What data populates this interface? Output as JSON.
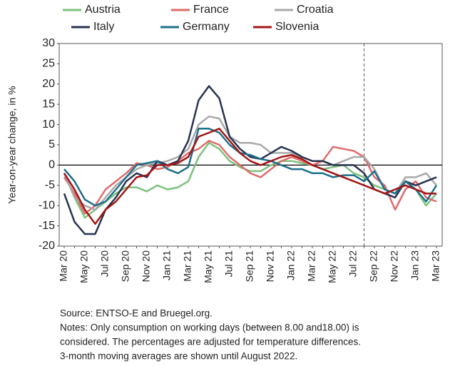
{
  "chart_data": {
    "type": "line",
    "y_label": "Year-on-year change, in %",
    "categories": [
      "Mar 20",
      null,
      "May 20",
      null,
      "Jul 20",
      null,
      "Sep 20",
      null,
      "Nov 20",
      null,
      "Jan 21",
      null,
      "Mar 21",
      null,
      "May 21",
      null,
      "Jul 21",
      null,
      "Sep 21",
      null,
      "Nov 21",
      null,
      "Jan 22",
      null,
      "Mar 22",
      null,
      "May 22",
      null,
      "Jul 22",
      null,
      "Sep 22",
      null,
      "Nov 22",
      null,
      "Jan 23",
      null,
      "Mar 23"
    ],
    "series": [
      {
        "name": "Austria",
        "color": "#7dc17d",
        "values": [
          -2,
          -8,
          -13,
          -11,
          -9,
          -7,
          -5.5,
          -5.5,
          -6.5,
          -5,
          -6,
          -5.5,
          -4,
          2,
          5.5,
          4,
          1,
          -0.5,
          -1.5,
          -1.5,
          0,
          1,
          1,
          0.5,
          0,
          -1,
          -0.5,
          0,
          -2,
          -3,
          -5,
          -6,
          -7,
          -4,
          -6,
          -10,
          -7
        ]
      },
      {
        "name": "France",
        "color": "#e06b6b",
        "values": [
          -3,
          -7,
          -12,
          -10,
          -6,
          -4,
          -2,
          0.5,
          0,
          -1,
          -0.5,
          1,
          3,
          4,
          6,
          5,
          2,
          0,
          -2,
          -3,
          -1,
          1,
          2,
          1,
          0,
          1,
          4.5,
          4,
          3.5,
          2,
          -3,
          -5,
          -11,
          -6,
          -4,
          -8,
          -9
        ]
      },
      {
        "name": "Croatia",
        "color": "#a9a9a9",
        "values": [
          -2,
          -8,
          -10,
          -11,
          -8,
          -5,
          -3,
          -1,
          0,
          0.5,
          1,
          2,
          4,
          10,
          12,
          11.5,
          7,
          5.5,
          5.5,
          5,
          3,
          3,
          3,
          2,
          1,
          1,
          0,
          1,
          2,
          2,
          -1,
          -6,
          -7,
          -3,
          -3,
          -2,
          -5
        ]
      },
      {
        "name": "Italy",
        "color": "#283350",
        "values": [
          -7,
          -14,
          -17,
          -17,
          -11,
          -8,
          -4,
          -2,
          -3,
          1,
          0,
          1,
          6,
          16,
          19.5,
          16.5,
          7,
          4,
          2,
          1.5,
          3,
          4.5,
          3.5,
          2,
          1,
          1,
          0,
          0,
          0,
          -2,
          -6,
          -7,
          -8,
          -4,
          -5,
          -4,
          -3
        ]
      },
      {
        "name": "Germany",
        "color": "#1d6f8a",
        "values": [
          -1,
          -4,
          -8.5,
          -10,
          -9,
          -6,
          -3,
          0,
          0.5,
          1,
          -1,
          -2,
          -0.5,
          9,
          9,
          8,
          5,
          3,
          2.5,
          1.5,
          1,
          0,
          -1,
          -1,
          -2,
          -2,
          -3,
          -2.5,
          -2.5,
          -4,
          -1.5,
          -6,
          -7,
          -4,
          -6,
          -9,
          -5
        ]
      },
      {
        "name": "Slovenia",
        "color": "#a31515",
        "values": [
          -2,
          -6,
          -11,
          -14.5,
          -11,
          -9,
          -6,
          -3,
          -2.5,
          0,
          0,
          0.5,
          2,
          7,
          8,
          9,
          6,
          3,
          1,
          0,
          1,
          2,
          2.5,
          1.5,
          0,
          -1,
          -2,
          -3,
          -4,
          -5,
          -6,
          -7,
          -6,
          -5,
          -6,
          -7,
          -7
        ]
      }
    ],
    "ylim": [
      -20,
      30
    ],
    "yticks": [
      -20,
      -15,
      -10,
      -5,
      0,
      5,
      10,
      15,
      20,
      25,
      30
    ],
    "legend": "top",
    "source": "Source: ENTSO-E and Bruegel.org.",
    "notes": [
      "Notes: Only consumption on working days (between 8.00 and18.00) is",
      "considered. The percentages are adjusted for temperature differences.",
      "3-month moving averages are shown until August 2022."
    ]
  }
}
